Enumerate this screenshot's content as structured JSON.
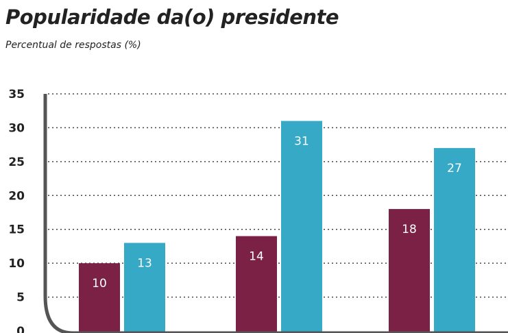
{
  "chart_data": {
    "type": "bar",
    "title": "Popularidade da(o) presidente",
    "subtitle": "Percentual de respostas (%)",
    "xlabel": "",
    "ylabel": "",
    "categories": [
      "",
      "",
      ""
    ],
    "series": [
      {
        "values": [
          10,
          14,
          18
        ],
        "color": "#7b2145",
        "labels": [
          "10",
          "14",
          "18"
        ]
      },
      {
        "values": [
          13,
          31,
          27
        ],
        "color": "#35a9c6",
        "labels": [
          "13",
          "31",
          "27"
        ]
      }
    ],
    "ylim": [
      0,
      35
    ],
    "yticks": [
      0,
      5,
      10,
      15,
      20,
      25,
      30,
      35
    ],
    "grid": true
  }
}
